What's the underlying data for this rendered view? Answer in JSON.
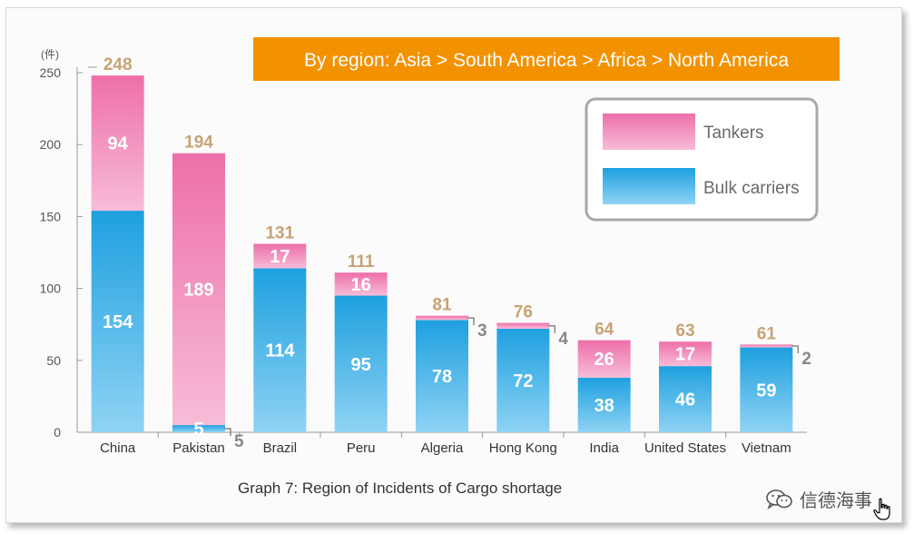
{
  "chart_data": {
    "type": "bar",
    "stacked": true,
    "title": "By region: Asia > South America > Africa > North America",
    "banner_color": "#f39200",
    "unit_label": "(件)",
    "categories": [
      "China",
      "Pakistan",
      "Brazil",
      "Peru",
      "Algeria",
      "Hong Kong",
      "India",
      "United States",
      "Vietnam"
    ],
    "series": [
      {
        "name": "Bulk carriers",
        "values": [
          154,
          5,
          114,
          95,
          78,
          72,
          38,
          46,
          59
        ],
        "color": "#2aa7e2"
      },
      {
        "name": "Tankers",
        "values": [
          94,
          189,
          17,
          16,
          3,
          4,
          26,
          17,
          2
        ],
        "color": "#f07fb3"
      }
    ],
    "totals": [
      248,
      194,
      131,
      111,
      81,
      76,
      64,
      63,
      61
    ],
    "ylim": [
      0,
      250
    ],
    "yticks": [
      0,
      50,
      100,
      150,
      200,
      250
    ],
    "legend_position": "top-right",
    "grid": false
  },
  "caption": "Graph 7: Region of Incidents of Cargo shortage",
  "watermark": {
    "text": "信德海事",
    "icon": "wechat-icon"
  },
  "cursor": {
    "icon": "hand-cursor-icon"
  }
}
